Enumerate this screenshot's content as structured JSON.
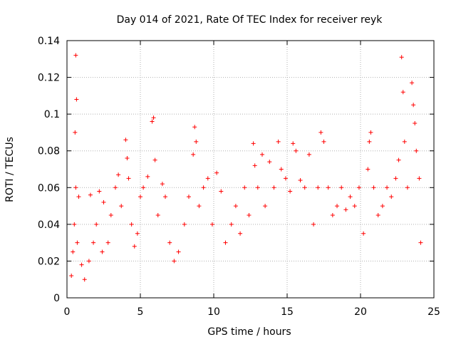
{
  "chart_data": {
    "type": "scatter",
    "title": "Day 014 of 2021, Rate Of TEC Index for receiver reyk",
    "xlabel": "GPS time / hours",
    "ylabel": "ROTI / TECUs",
    "xlim": [
      0,
      25
    ],
    "ylim": [
      0,
      0.14
    ],
    "x_ticks": [
      "0",
      "5",
      "10",
      "15",
      "20",
      "25"
    ],
    "y_ticks": [
      "0",
      "0.02",
      "0.04",
      "0.06",
      "0.08",
      "0.1",
      "0.12",
      "0.14"
    ],
    "x_tick_values": [
      0,
      5,
      10,
      15,
      20,
      25
    ],
    "y_tick_values": [
      0,
      0.02,
      0.04,
      0.06,
      0.08,
      0.1,
      0.12,
      0.14
    ],
    "grid": true,
    "marker": "+",
    "color": "#ff0000",
    "series": [
      {
        "name": "",
        "points": [
          [
            0.3,
            0.012
          ],
          [
            0.4,
            0.025
          ],
          [
            0.5,
            0.04
          ],
          [
            0.55,
            0.09
          ],
          [
            0.6,
            0.132
          ],
          [
            0.65,
            0.108
          ],
          [
            0.6,
            0.06
          ],
          [
            0.7,
            0.03
          ],
          [
            0.8,
            0.055
          ],
          [
            1.0,
            0.018
          ],
          [
            1.2,
            0.01
          ],
          [
            1.5,
            0.02
          ],
          [
            1.6,
            0.056
          ],
          [
            1.8,
            0.03
          ],
          [
            2.0,
            0.04
          ],
          [
            2.2,
            0.058
          ],
          [
            2.4,
            0.025
          ],
          [
            2.5,
            0.052
          ],
          [
            2.8,
            0.03
          ],
          [
            3.0,
            0.045
          ],
          [
            3.3,
            0.06
          ],
          [
            3.5,
            0.067
          ],
          [
            3.7,
            0.05
          ],
          [
            4.0,
            0.086
          ],
          [
            4.1,
            0.076
          ],
          [
            4.2,
            0.065
          ],
          [
            4.4,
            0.04
          ],
          [
            4.6,
            0.028
          ],
          [
            4.8,
            0.035
          ],
          [
            5.0,
            0.055
          ],
          [
            5.2,
            0.06
          ],
          [
            5.5,
            0.066
          ],
          [
            5.8,
            0.096
          ],
          [
            5.9,
            0.098
          ],
          [
            6.0,
            0.075
          ],
          [
            6.2,
            0.045
          ],
          [
            6.5,
            0.062
          ],
          [
            6.7,
            0.055
          ],
          [
            7.0,
            0.03
          ],
          [
            7.3,
            0.02
          ],
          [
            7.6,
            0.025
          ],
          [
            8.0,
            0.04
          ],
          [
            8.3,
            0.055
          ],
          [
            8.6,
            0.078
          ],
          [
            8.7,
            0.093
          ],
          [
            8.8,
            0.085
          ],
          [
            9.0,
            0.05
          ],
          [
            9.3,
            0.06
          ],
          [
            9.6,
            0.065
          ],
          [
            9.9,
            0.04
          ],
          [
            10.2,
            0.068
          ],
          [
            10.5,
            0.058
          ],
          [
            10.8,
            0.03
          ],
          [
            11.2,
            0.04
          ],
          [
            11.5,
            0.05
          ],
          [
            11.8,
            0.035
          ],
          [
            12.1,
            0.06
          ],
          [
            12.4,
            0.045
          ],
          [
            12.7,
            0.084
          ],
          [
            12.8,
            0.072
          ],
          [
            13.0,
            0.06
          ],
          [
            13.3,
            0.078
          ],
          [
            13.5,
            0.05
          ],
          [
            13.8,
            0.074
          ],
          [
            14.1,
            0.06
          ],
          [
            14.4,
            0.085
          ],
          [
            14.6,
            0.07
          ],
          [
            14.9,
            0.065
          ],
          [
            15.2,
            0.058
          ],
          [
            15.4,
            0.084
          ],
          [
            15.6,
            0.08
          ],
          [
            15.9,
            0.064
          ],
          [
            16.2,
            0.06
          ],
          [
            16.5,
            0.078
          ],
          [
            16.8,
            0.04
          ],
          [
            17.1,
            0.06
          ],
          [
            17.3,
            0.09
          ],
          [
            17.5,
            0.085
          ],
          [
            17.8,
            0.06
          ],
          [
            18.1,
            0.045
          ],
          [
            18.4,
            0.05
          ],
          [
            18.7,
            0.06
          ],
          [
            19.0,
            0.048
          ],
          [
            19.3,
            0.055
          ],
          [
            19.6,
            0.05
          ],
          [
            19.9,
            0.06
          ],
          [
            20.2,
            0.035
          ],
          [
            20.5,
            0.07
          ],
          [
            20.6,
            0.085
          ],
          [
            20.7,
            0.09
          ],
          [
            20.9,
            0.06
          ],
          [
            21.2,
            0.045
          ],
          [
            21.5,
            0.05
          ],
          [
            21.8,
            0.06
          ],
          [
            22.1,
            0.055
          ],
          [
            22.4,
            0.065
          ],
          [
            22.6,
            0.075
          ],
          [
            22.8,
            0.131
          ],
          [
            22.9,
            0.112
          ],
          [
            23.0,
            0.085
          ],
          [
            23.2,
            0.06
          ],
          [
            23.5,
            0.117
          ],
          [
            23.6,
            0.105
          ],
          [
            23.7,
            0.095
          ],
          [
            23.8,
            0.08
          ],
          [
            24.0,
            0.065
          ],
          [
            24.1,
            0.03
          ]
        ]
      }
    ]
  }
}
